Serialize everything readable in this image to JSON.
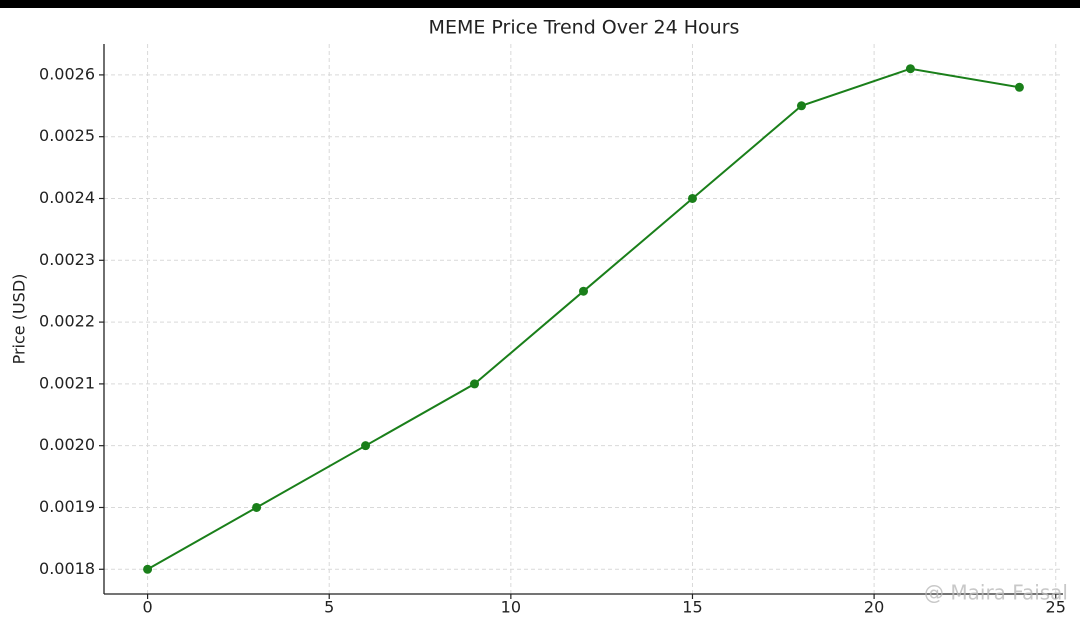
{
  "chart_data": {
    "type": "line",
    "title": "MEME Price Trend Over 24 Hours",
    "ylabel": "Price (USD)",
    "x": [
      0,
      3,
      6,
      9,
      12,
      15,
      18,
      21,
      24
    ],
    "series": [
      {
        "name": "MEME",
        "color": "#1a7f1a",
        "values": [
          0.0018,
          0.0019,
          0.002,
          0.0021,
          0.00225,
          0.0024,
          0.00255,
          0.00261,
          0.00258
        ]
      }
    ],
    "xlim": [
      -1.2,
      25.2
    ],
    "ylim": [
      0.00176,
      0.00265
    ],
    "xticks": [
      0,
      5,
      10,
      15,
      20,
      25
    ],
    "yticks": [
      0.0018,
      0.0019,
      {
        "value": 0.002,
        "label": "0.0020"
      },
      0.0021,
      0.0022,
      0.0023,
      0.0024,
      0.0025,
      0.0026
    ],
    "grid": true,
    "legend": false,
    "watermark": "@ Maira Faisal"
  }
}
